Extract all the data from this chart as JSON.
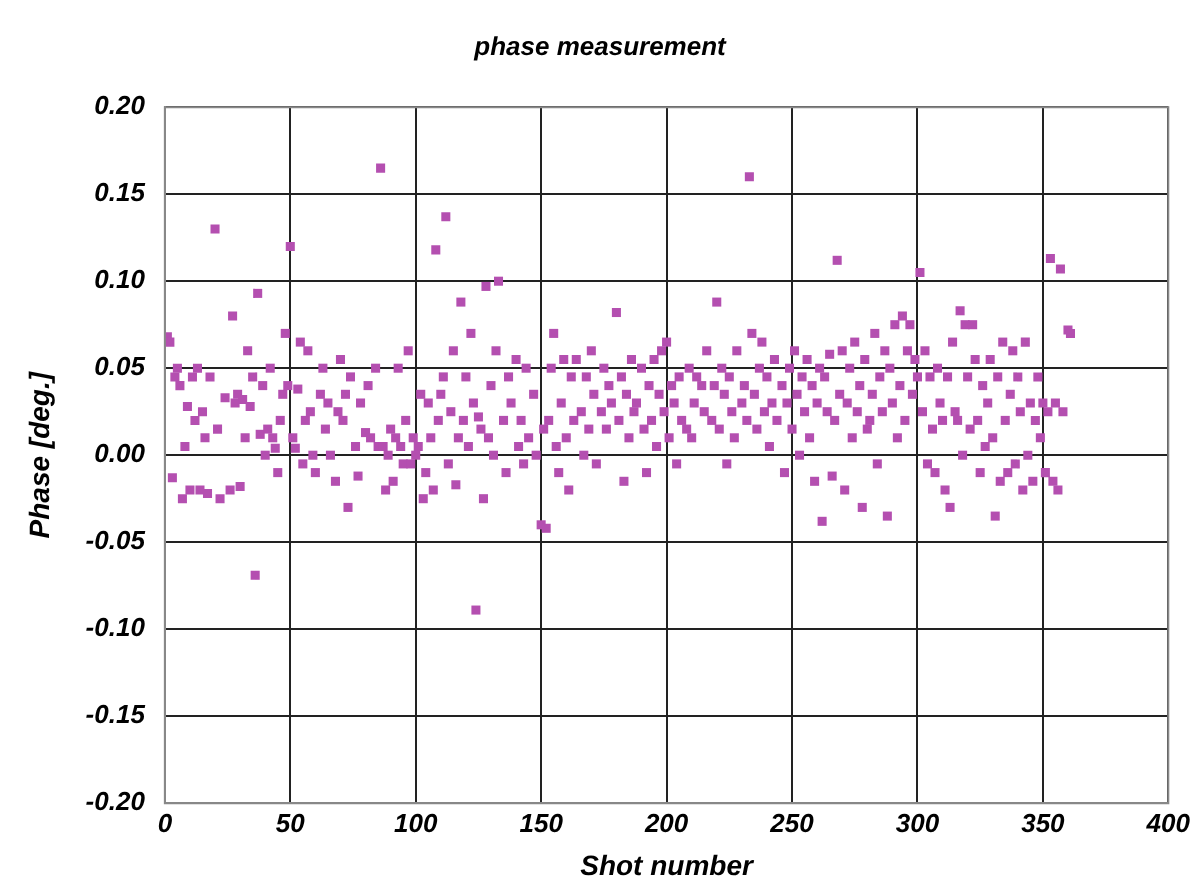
{
  "chart_data": {
    "type": "scatter",
    "title": "phase measurement",
    "xlabel": "Shot number",
    "ylabel": "Phase [deg.]",
    "xlim": [
      0,
      400
    ],
    "xticks": [
      0,
      50,
      100,
      150,
      200,
      250,
      300,
      350,
      400
    ],
    "ylim": [
      -0.2,
      0.2
    ],
    "yticks": [
      {
        "value": -0.2,
        "label": "-0.20"
      },
      {
        "value": -0.15,
        "label": "-0.15"
      },
      {
        "value": -0.1,
        "label": "-0.10"
      },
      {
        "value": -0.05,
        "label": "-0.05"
      },
      {
        "value": 0,
        "label": "0.00"
      },
      {
        "value": 0.05,
        "label": "0.05"
      },
      {
        "value": 0.1,
        "label": "0.10"
      },
      {
        "value": 0.15,
        "label": "0.15"
      },
      {
        "value": 0.2,
        "label": "0.20"
      }
    ],
    "grid": true,
    "marker": "square",
    "legend": false,
    "series": [
      {
        "color": "#b44fb0",
        "x": [
          1,
          2,
          3,
          4,
          5,
          6,
          7,
          8,
          9,
          10,
          11,
          12,
          13,
          14,
          15,
          16,
          17,
          18,
          20,
          21,
          22,
          24,
          26,
          27,
          28,
          29,
          30,
          31,
          32,
          33,
          34,
          35,
          36,
          37,
          38,
          39,
          40,
          41,
          42,
          43,
          44,
          45,
          46,
          47,
          48,
          49,
          50,
          51,
          52,
          53,
          54,
          55,
          56,
          57,
          58,
          59,
          60,
          62,
          63,
          64,
          65,
          66,
          68,
          69,
          70,
          71,
          72,
          73,
          74,
          76,
          77,
          78,
          80,
          81,
          82,
          84,
          85,
          86,
          87,
          88,
          89,
          90,
          91,
          92,
          93,
          94,
          95,
          96,
          97,
          98,
          99,
          100,
          101,
          102,
          103,
          104,
          105,
          106,
          107,
          108,
          109,
          110,
          111,
          112,
          113,
          114,
          115,
          116,
          117,
          118,
          119,
          120,
          121,
          122,
          123,
          124,
          125,
          126,
          127,
          128,
          129,
          130,
          131,
          132,
          133,
          135,
          136,
          137,
          138,
          140,
          141,
          142,
          143,
          144,
          145,
          147,
          148,
          150,
          151,
          152,
          153,
          154,
          155,
          156,
          157,
          158,
          159,
          160,
          161,
          162,
          163,
          164,
          166,
          167,
          168,
          169,
          170,
          171,
          172,
          174,
          175,
          176,
          177,
          178,
          180,
          181,
          182,
          183,
          184,
          185,
          186,
          187,
          188,
          190,
          191,
          192,
          193,
          194,
          195,
          196,
          197,
          198,
          199,
          200,
          201,
          202,
          203,
          204,
          205,
          206,
          208,
          209,
          210,
          211,
          212,
          214,
          215,
          216,
          218,
          219,
          220,
          221,
          222,
          223,
          224,
          225,
          226,
          227,
          228,
          230,
          231,
          232,
          233,
          234,
          235,
          236,
          237,
          238,
          239,
          240,
          241,
          242,
          243,
          244,
          246,
          247,
          248,
          249,
          250,
          251,
          252,
          253,
          254,
          255,
          256,
          257,
          258,
          259,
          260,
          261,
          262,
          263,
          264,
          265,
          266,
          267,
          268,
          269,
          270,
          271,
          272,
          273,
          274,
          275,
          276,
          277,
          278,
          279,
          280,
          281,
          282,
          283,
          284,
          285,
          286,
          287,
          288,
          289,
          290,
          291,
          292,
          293,
          294,
          295,
          296,
          297,
          298,
          299,
          300,
          301,
          302,
          303,
          304,
          305,
          306,
          307,
          308,
          309,
          310,
          311,
          312,
          313,
          314,
          315,
          316,
          317,
          318,
          319,
          320,
          321,
          322,
          323,
          324,
          325,
          326,
          327,
          328,
          329,
          330,
          331,
          332,
          333,
          334,
          335,
          336,
          337,
          338,
          339,
          340,
          341,
          342,
          343,
          344,
          345,
          346,
          347,
          348,
          349,
          350,
          351,
          352,
          353,
          354,
          355,
          356,
          357,
          358,
          360,
          361
        ],
        "values": [
          0.068,
          0.065,
          -0.013,
          0.045,
          0.05,
          0.04,
          -0.025,
          0.005,
          0.028,
          -0.02,
          0.045,
          0.02,
          0.05,
          -0.02,
          0.025,
          0.01,
          -0.022,
          0.045,
          0.13,
          0.015,
          -0.025,
          0.033,
          -0.02,
          0.08,
          0.03,
          0.035,
          -0.018,
          0.032,
          0.01,
          0.06,
          0.028,
          0.045,
          -0.069,
          0.093,
          0.012,
          0.04,
          0.0,
          0.015,
          0.05,
          0.01,
          0.004,
          -0.01,
          0.02,
          0.035,
          0.07,
          0.04,
          0.12,
          0.01,
          0.004,
          0.038,
          0.065,
          -0.005,
          0.02,
          0.06,
          0.025,
          0.0,
          -0.01,
          0.035,
          0.05,
          0.015,
          0.03,
          0.0,
          -0.015,
          0.025,
          0.055,
          0.02,
          0.035,
          -0.03,
          0.045,
          0.005,
          -0.012,
          0.03,
          0.013,
          0.04,
          0.01,
          0.05,
          0.005,
          0.165,
          0.005,
          -0.02,
          0.0,
          0.015,
          -0.015,
          0.01,
          0.05,
          0.005,
          -0.005,
          0.02,
          0.06,
          -0.005,
          0.01,
          0.0,
          0.005,
          0.035,
          -0.025,
          -0.01,
          0.03,
          0.01,
          -0.02,
          0.118,
          0.02,
          0.035,
          0.045,
          0.137,
          -0.005,
          0.025,
          0.06,
          -0.017,
          0.01,
          0.088,
          0.02,
          0.045,
          0.005,
          0.07,
          0.03,
          -0.089,
          0.022,
          0.015,
          -0.025,
          0.097,
          0.01,
          0.04,
          0.0,
          0.06,
          0.1,
          0.02,
          -0.01,
          0.045,
          0.03,
          0.055,
          0.005,
          0.02,
          -0.005,
          0.05,
          0.01,
          0.035,
          0.0,
          -0.04,
          0.015,
          -0.042,
          0.02,
          0.05,
          0.07,
          0.005,
          -0.01,
          0.03,
          0.055,
          0.01,
          -0.02,
          0.045,
          0.02,
          0.055,
          0.025,
          0.0,
          0.045,
          0.015,
          0.06,
          0.035,
          -0.005,
          0.025,
          0.05,
          0.015,
          0.04,
          0.03,
          0.082,
          0.02,
          0.045,
          -0.015,
          0.035,
          0.01,
          0.055,
          0.025,
          0.03,
          0.05,
          0.015,
          -0.01,
          0.04,
          0.02,
          0.055,
          0.005,
          0.035,
          0.06,
          0.025,
          0.065,
          0.01,
          0.04,
          0.03,
          -0.005,
          0.045,
          0.02,
          0.015,
          0.05,
          0.01,
          0.03,
          0.045,
          0.04,
          0.025,
          0.06,
          0.02,
          0.04,
          0.088,
          0.015,
          0.05,
          0.035,
          -0.005,
          0.045,
          0.025,
          0.01,
          0.06,
          0.03,
          0.04,
          0.02,
          0.16,
          0.07,
          0.035,
          0.015,
          0.05,
          0.065,
          0.025,
          0.045,
          0.005,
          0.03,
          0.055,
          0.02,
          0.04,
          -0.01,
          0.03,
          0.05,
          0.015,
          0.06,
          0.035,
          0.0,
          0.045,
          0.025,
          0.055,
          0.01,
          0.04,
          -0.015,
          0.03,
          0.05,
          -0.038,
          0.045,
          0.025,
          0.058,
          -0.012,
          0.02,
          0.112,
          0.035,
          0.06,
          -0.02,
          0.03,
          0.05,
          0.01,
          0.065,
          0.025,
          0.04,
          -0.03,
          0.055,
          0.015,
          0.02,
          0.035,
          0.07,
          -0.005,
          0.045,
          0.025,
          0.06,
          -0.035,
          0.05,
          0.03,
          0.075,
          0.01,
          0.04,
          0.08,
          0.02,
          0.06,
          0.075,
          0.035,
          0.055,
          0.045,
          0.105,
          0.025,
          0.06,
          -0.005,
          0.045,
          0.015,
          -0.01,
          0.05,
          0.03,
          0.02,
          -0.02,
          0.045,
          -0.03,
          0.065,
          0.025,
          0.02,
          0.083,
          0.0,
          0.075,
          0.045,
          0.015,
          0.075,
          0.055,
          0.02,
          -0.01,
          0.04,
          0.005,
          0.03,
          0.055,
          0.01,
          -0.035,
          0.045,
          -0.015,
          0.065,
          0.02,
          -0.01,
          0.035,
          0.06,
          -0.005,
          0.045,
          0.025,
          -0.02,
          0.065,
          0.0,
          0.03,
          -0.015,
          0.02,
          0.045,
          0.01,
          0.03,
          -0.01,
          0.025,
          0.113,
          -0.015,
          0.03,
          -0.02,
          0.107,
          0.025,
          0.072,
          0.07
        ]
      }
    ]
  }
}
